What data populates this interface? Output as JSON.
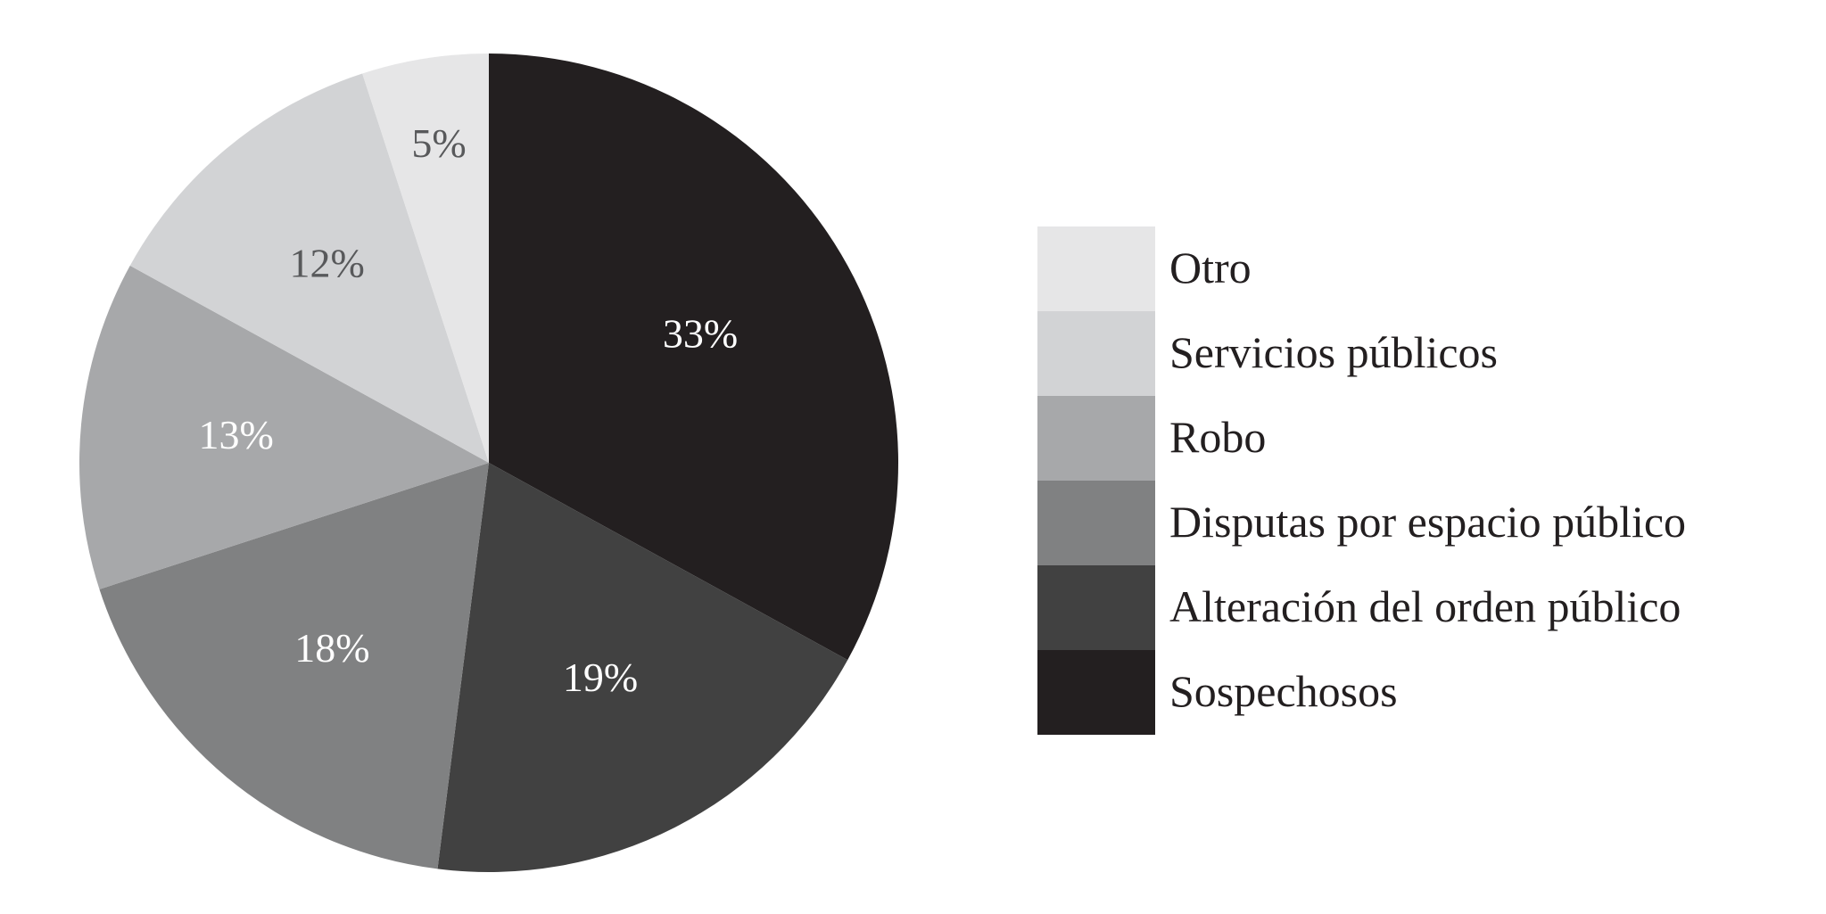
{
  "chart_data": {
    "type": "pie",
    "title": "",
    "slices": [
      {
        "label": "Sospechosos",
        "value": 33,
        "display": "33%",
        "color": "#231f20",
        "text_color": "#ffffff"
      },
      {
        "label": "Alteración del orden público",
        "value": 19,
        "display": "19%",
        "color": "#414141",
        "text_color": "#ffffff"
      },
      {
        "label": "Disputas por espacio público",
        "value": 18,
        "display": "18%",
        "color": "#808182",
        "text_color": "#ffffff"
      },
      {
        "label": "Robo",
        "value": 13,
        "display": "13%",
        "color": "#a7a8aa",
        "text_color": "#ffffff"
      },
      {
        "label": "Servicios públicos",
        "value": 12,
        "display": "12%",
        "color": "#d2d3d5",
        "text_color": "#58595b"
      },
      {
        "label": "Otro",
        "value": 5,
        "display": "5%",
        "color": "#e6e6e7",
        "text_color": "#58595b"
      }
    ],
    "start_angle_deg": 0,
    "direction": "clockwise",
    "legend": {
      "placement": "right",
      "order": [
        "Otro",
        "Servicios públicos",
        "Robo",
        "Disputas por espacio público",
        "Alteración del orden público",
        "Sospechosos"
      ]
    }
  }
}
